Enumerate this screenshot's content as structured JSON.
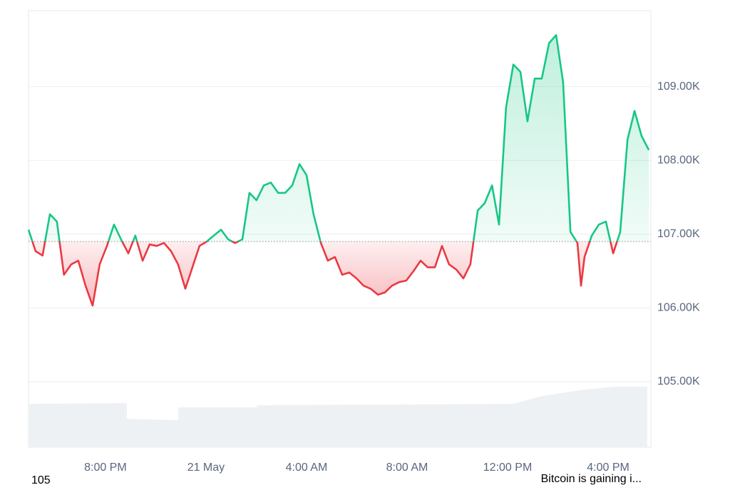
{
  "chart_data": {
    "type": "baseline-line",
    "x": [
      16.94,
      17.22,
      17.5,
      17.79,
      18.07,
      18.35,
      18.64,
      18.92,
      19.21,
      19.49,
      19.77,
      20.06,
      20.34,
      20.62,
      20.91,
      21.19,
      21.48,
      21.76,
      22.04,
      22.33,
      22.61,
      22.89,
      23.18,
      23.46,
      23.74,
      24.03,
      24.31,
      24.6,
      24.88,
      25.16,
      25.45,
      25.73,
      26.01,
      26.3,
      26.58,
      26.87,
      27.15,
      27.43,
      27.72,
      28.0,
      28.28,
      28.57,
      28.85,
      29.13,
      29.42,
      29.7,
      29.99,
      30.27,
      30.55,
      30.84,
      31.12,
      31.4,
      31.69,
      31.97,
      32.26,
      32.54,
      32.82,
      33.11,
      33.39,
      33.67,
      33.96,
      34.24,
      34.52,
      34.81,
      35.09,
      35.38,
      35.66,
      35.94,
      36.23,
      36.51,
      36.79,
      37.08,
      37.36,
      37.65,
      37.93,
      38.21,
      38.5,
      38.78,
      38.92,
      39.06,
      39.35,
      39.63,
      39.91,
      40.2,
      40.48,
      40.77,
      41.05,
      41.33,
      41.62
    ],
    "values": [
      107060,
      106770,
      106710,
      107270,
      107170,
      106450,
      106590,
      106640,
      106300,
      106030,
      106590,
      106840,
      107130,
      106930,
      106740,
      106980,
      106640,
      106860,
      106840,
      106880,
      106770,
      106590,
      106260,
      106550,
      106840,
      106900,
      106980,
      107060,
      106930,
      106880,
      106930,
      107560,
      107460,
      107660,
      107700,
      107560,
      107560,
      107660,
      107950,
      107800,
      107270,
      106880,
      106640,
      106690,
      106450,
      106480,
      106400,
      106300,
      106260,
      106180,
      106210,
      106300,
      106350,
      106370,
      106500,
      106640,
      106550,
      106550,
      106840,
      106590,
      106520,
      106400,
      106590,
      107320,
      107420,
      107660,
      107130,
      108720,
      109300,
      109200,
      108530,
      109110,
      109110,
      109590,
      109700,
      109060,
      107030,
      106880,
      106300,
      106690,
      106980,
      107130,
      107170,
      106740,
      107030,
      108280,
      108670,
      108330,
      108140
    ],
    "baseline": 106900,
    "up_color": "#16c784",
    "down_color": "#ea3943",
    "xlim": [
      16.94,
      41.7
    ],
    "xticks": [
      {
        "value": 20,
        "label": "8:00 PM"
      },
      {
        "value": 24,
        "label": "21 May"
      },
      {
        "value": 28,
        "label": "4:00 AM"
      },
      {
        "value": 32,
        "label": "8:00 AM"
      },
      {
        "value": 36,
        "label": "12:00 PM"
      },
      {
        "value": 40,
        "label": "4:00 PM"
      }
    ],
    "ylim": [
      104110,
      110030
    ],
    "yticks": [
      {
        "value": 105000,
        "label": "105.00K"
      },
      {
        "value": 106000,
        "label": "106.00K"
      },
      {
        "value": 107000,
        "label": "107.00K"
      },
      {
        "value": 108000,
        "label": "108.00K"
      },
      {
        "value": 109000,
        "label": "109.00K"
      }
    ],
    "grid": true
  },
  "footer": {
    "left": "105",
    "right": "Bitcoin is gaining i..."
  }
}
